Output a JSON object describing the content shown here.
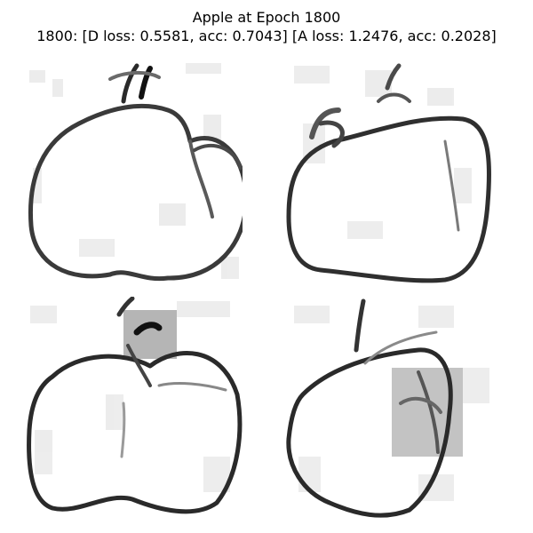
{
  "figure": {
    "title": "Apple at Epoch 1800",
    "subtitle": "1800: [D loss: 0.5581, acc: 0.7043]  [A loss: 1.2476, acc: 0.2028]"
  },
  "panels": [
    {
      "depicts": "apple-doodle"
    },
    {
      "depicts": "apple-doodle"
    },
    {
      "depicts": "apple-doodle"
    },
    {
      "depicts": "apple-doodle"
    }
  ],
  "colors": {
    "ink": "#1a1a1a",
    "mid": "#6e6e6e",
    "noise": "#d2d2d2",
    "background": "#ffffff"
  }
}
